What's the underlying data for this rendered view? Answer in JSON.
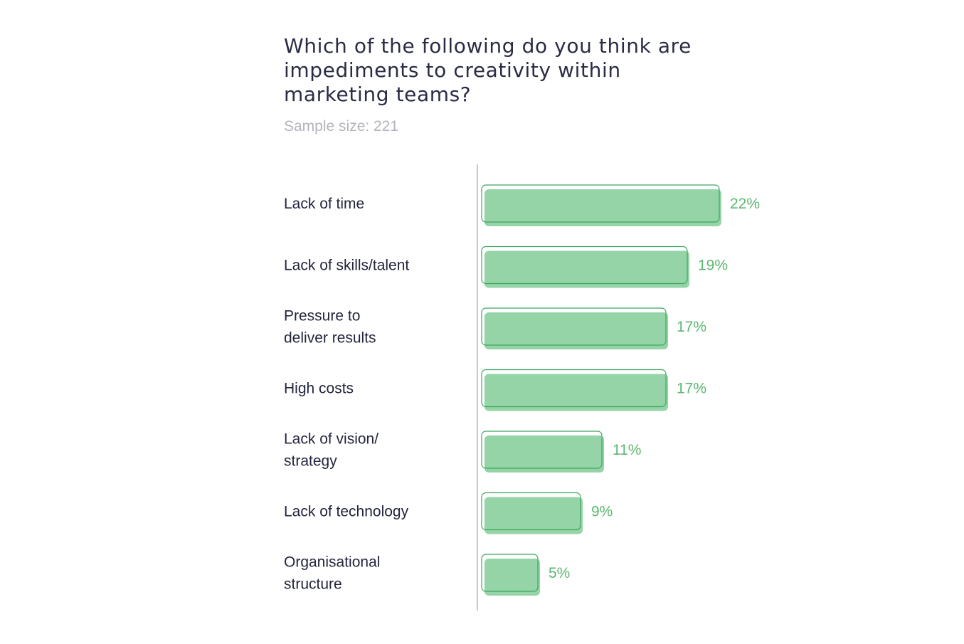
{
  "chart_data": {
    "type": "bar",
    "orientation": "horizontal",
    "title": "Which of the following do you think are impediments to creativity within marketing teams?",
    "subtitle": "Sample size: 221",
    "categories": [
      "Lack of time",
      "Lack of skills/talent",
      "Pressure to deliver results",
      "High costs",
      "Lack of vision/ strategy",
      "Lack of technology",
      "Organisational structure"
    ],
    "category_lines": [
      [
        "Lack of time"
      ],
      [
        "Lack of skills/talent"
      ],
      [
        "Pressure to",
        "deliver results"
      ],
      [
        "High costs"
      ],
      [
        "Lack of vision/",
        "strategy"
      ],
      [
        "Lack of technology"
      ],
      [
        "Organisational",
        "structure"
      ]
    ],
    "values": [
      22,
      19,
      17,
      17,
      11,
      9,
      5
    ],
    "value_labels": [
      "22%",
      "19%",
      "17%",
      "17%",
      "11%",
      "9%",
      "5%"
    ],
    "unit": "%",
    "xlim": [
      0,
      22
    ],
    "grid": false,
    "legend": "none"
  },
  "colors": {
    "bar_fill": "#94d4a6",
    "bar_outline": "#3ea560",
    "value_text": "#5db66f",
    "category_text": "#23253d",
    "title_text": "#2a2c45",
    "subtitle_text": "#b3b3bb",
    "axis_line": "#c9c9c9"
  }
}
